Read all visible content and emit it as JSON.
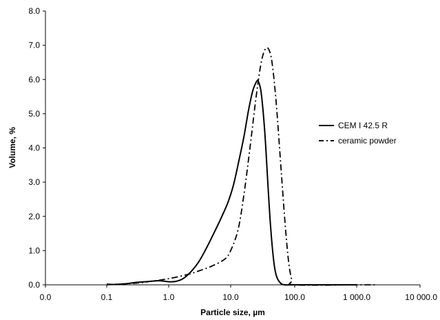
{
  "chart_data": {
    "type": "line",
    "title": "",
    "xlabel": "Particle size, µm",
    "ylabel": "Volume, %",
    "x_scale": "log",
    "x_ticks": [
      0.0,
      0.1,
      1.0,
      10.0,
      100.0,
      1000.0,
      10000.0
    ],
    "x_tick_labels": [
      "0.0",
      "0.1",
      "1.0",
      "10.0",
      "100.0",
      "1 000.0",
      "10 000.0"
    ],
    "ylim": [
      0,
      8
    ],
    "y_ticks": [
      0,
      1,
      2,
      3,
      4,
      5,
      6,
      7,
      8
    ],
    "y_tick_labels": [
      "0.0",
      "1.0",
      "2.0",
      "3.0",
      "4.0",
      "5.0",
      "6.0",
      "7.0",
      "8.0"
    ],
    "grid": false,
    "legend": "right",
    "series": [
      {
        "name": "CEM I 42.5 R",
        "line_style": "solid",
        "color": "#000000",
        "points": [
          [
            0.1,
            0.02
          ],
          [
            0.13,
            0.01
          ],
          [
            0.2,
            0.03
          ],
          [
            0.3,
            0.07
          ],
          [
            0.5,
            0.1
          ],
          [
            0.7,
            0.12
          ],
          [
            1.0,
            0.09
          ],
          [
            1.3,
            0.1
          ],
          [
            1.7,
            0.18
          ],
          [
            2.2,
            0.35
          ],
          [
            3.0,
            0.65
          ],
          [
            4.0,
            1.05
          ],
          [
            5.5,
            1.55
          ],
          [
            7.0,
            1.95
          ],
          [
            9.0,
            2.4
          ],
          [
            11.0,
            2.9
          ],
          [
            13.0,
            3.5
          ],
          [
            16.0,
            4.3
          ],
          [
            19.0,
            5.1
          ],
          [
            22.0,
            5.65
          ],
          [
            25.0,
            5.92
          ],
          [
            27.0,
            5.95
          ],
          [
            30.0,
            5.6
          ],
          [
            34.0,
            4.5
          ],
          [
            38.0,
            3.0
          ],
          [
            42.0,
            1.7
          ],
          [
            47.0,
            0.7
          ],
          [
            52.0,
            0.25
          ],
          [
            60.0,
            0.05
          ],
          [
            70.0,
            0.0
          ],
          [
            100.0,
            0.0
          ],
          [
            1000.0,
            0.0
          ]
        ]
      },
      {
        "name": "ceramic powder",
        "line_style": "dash-dot",
        "color": "#000000",
        "points": [
          [
            0.1,
            0.0
          ],
          [
            0.3,
            0.05
          ],
          [
            0.5,
            0.1
          ],
          [
            1.0,
            0.18
          ],
          [
            2.0,
            0.3
          ],
          [
            3.0,
            0.4
          ],
          [
            5.0,
            0.55
          ],
          [
            8.0,
            0.75
          ],
          [
            10.0,
            1.0
          ],
          [
            13.0,
            1.6
          ],
          [
            16.0,
            2.6
          ],
          [
            20.0,
            4.0
          ],
          [
            25.0,
            5.5
          ],
          [
            30.0,
            6.5
          ],
          [
            35.0,
            6.9
          ],
          [
            40.0,
            6.85
          ],
          [
            45.0,
            6.4
          ],
          [
            52.0,
            5.2
          ],
          [
            60.0,
            3.6
          ],
          [
            70.0,
            1.9
          ],
          [
            80.0,
            0.7
          ],
          [
            90.0,
            0.15
          ],
          [
            100.0,
            0.0
          ],
          [
            1000.0,
            0.0
          ],
          [
            2000.0,
            0.0
          ]
        ]
      }
    ]
  }
}
